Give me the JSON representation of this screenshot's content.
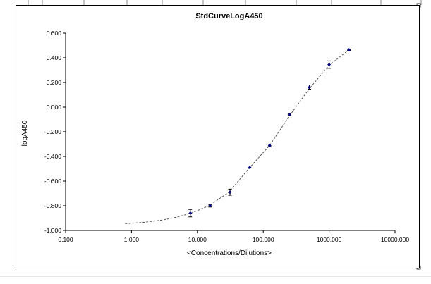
{
  "chart_data": {
    "type": "scatter",
    "title": "StdCurveLogA450",
    "xlabel": "<Concentrations/Dilutions>",
    "ylabel": "logA450",
    "x_scale": "log",
    "xlim": [
      0.1,
      10000
    ],
    "ylim": [
      -1.0,
      0.6
    ],
    "x_ticks": [
      "0.100",
      "1.000",
      "10.000",
      "100.000",
      "1000.000",
      "10000.000"
    ],
    "y_ticks": [
      "-1.000",
      "-0.800",
      "-0.600",
      "-0.400",
      "-0.200",
      "0.000",
      "0.200",
      "0.400",
      "0.600"
    ],
    "grid": false,
    "legend": "none",
    "series": [
      {
        "marker_color": "#000080",
        "points": [
          {
            "x": 7.81,
            "y": -0.86,
            "err": 0.03
          },
          {
            "x": 15.6,
            "y": -0.8,
            "err": 0.01
          },
          {
            "x": 31.25,
            "y": -0.69,
            "err": 0.025
          },
          {
            "x": 62.5,
            "y": -0.49,
            "err": 0.0
          },
          {
            "x": 125,
            "y": -0.31,
            "err": 0.01
          },
          {
            "x": 250,
            "y": -0.06,
            "err": 0.005
          },
          {
            "x": 500,
            "y": 0.16,
            "err": 0.02
          },
          {
            "x": 1000,
            "y": 0.345,
            "err": 0.03
          },
          {
            "x": 2000,
            "y": 0.465,
            "err": 0.005
          }
        ]
      }
    ],
    "fit_curve": {
      "style": "dashed",
      "color": "#555555",
      "x": [
        0.8,
        1.5,
        3,
        5,
        8,
        15,
        30,
        60,
        125,
        250,
        500,
        1000,
        2000
      ],
      "y": [
        -0.945,
        -0.935,
        -0.915,
        -0.89,
        -0.86,
        -0.8,
        -0.69,
        -0.5,
        -0.31,
        -0.07,
        0.15,
        0.34,
        0.465
      ]
    }
  }
}
